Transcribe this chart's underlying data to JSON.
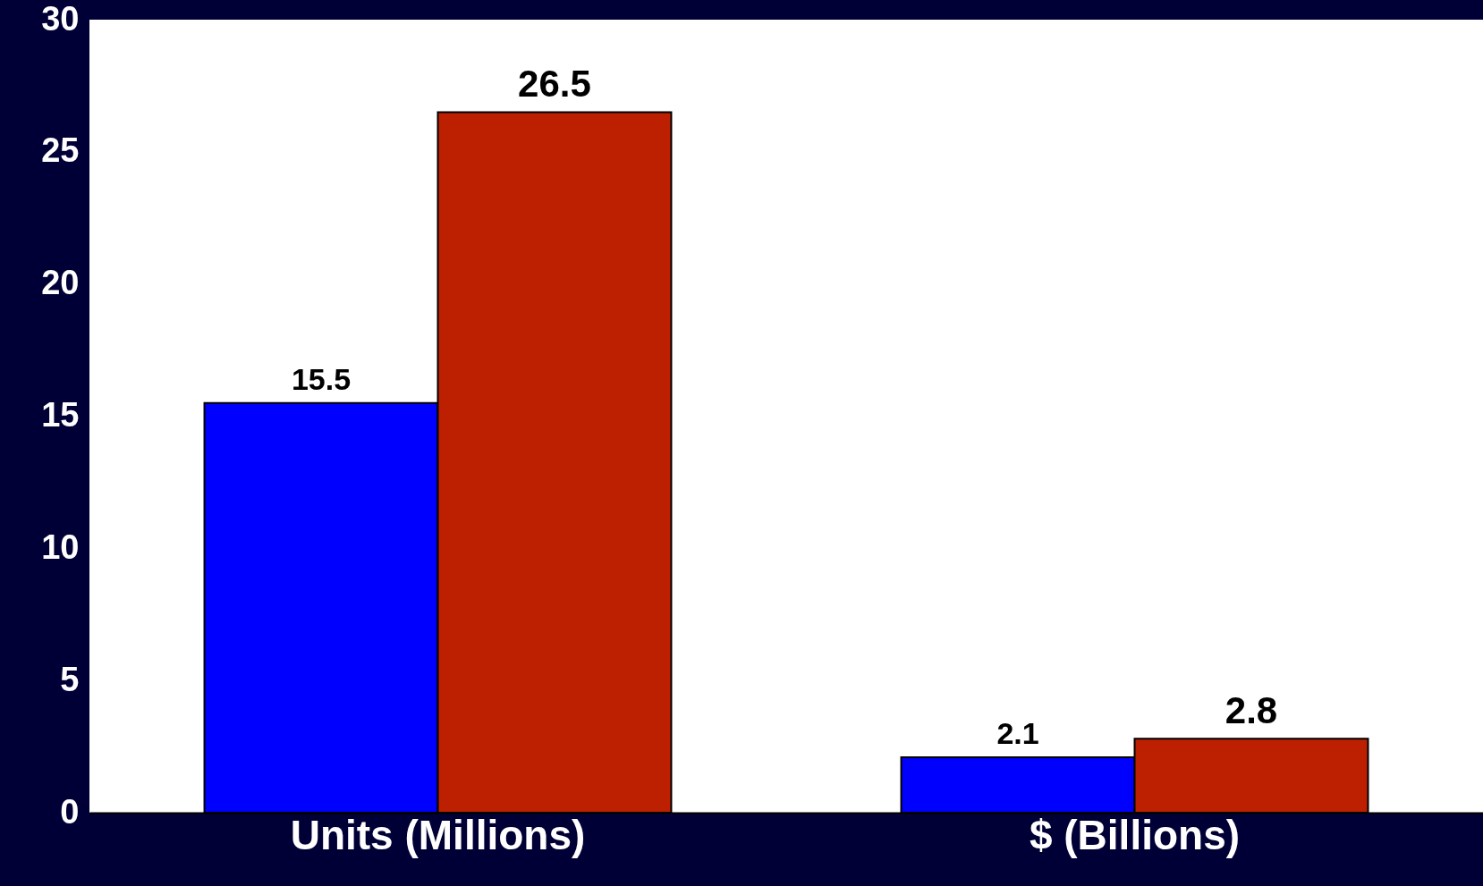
{
  "chart_data": {
    "type": "bar",
    "categories": [
      "Units (Millions)",
      "$ (Billions)"
    ],
    "series": [
      {
        "color": "#0000ff",
        "values": [
          15.5,
          2.1
        ]
      },
      {
        "color": "#bd2000",
        "values": [
          26.5,
          2.8
        ]
      }
    ],
    "ylim": [
      0,
      30
    ],
    "yticks": [
      0,
      5,
      10,
      15,
      20,
      25,
      30
    ],
    "grid": false,
    "legend": false,
    "data_labels": true
  }
}
